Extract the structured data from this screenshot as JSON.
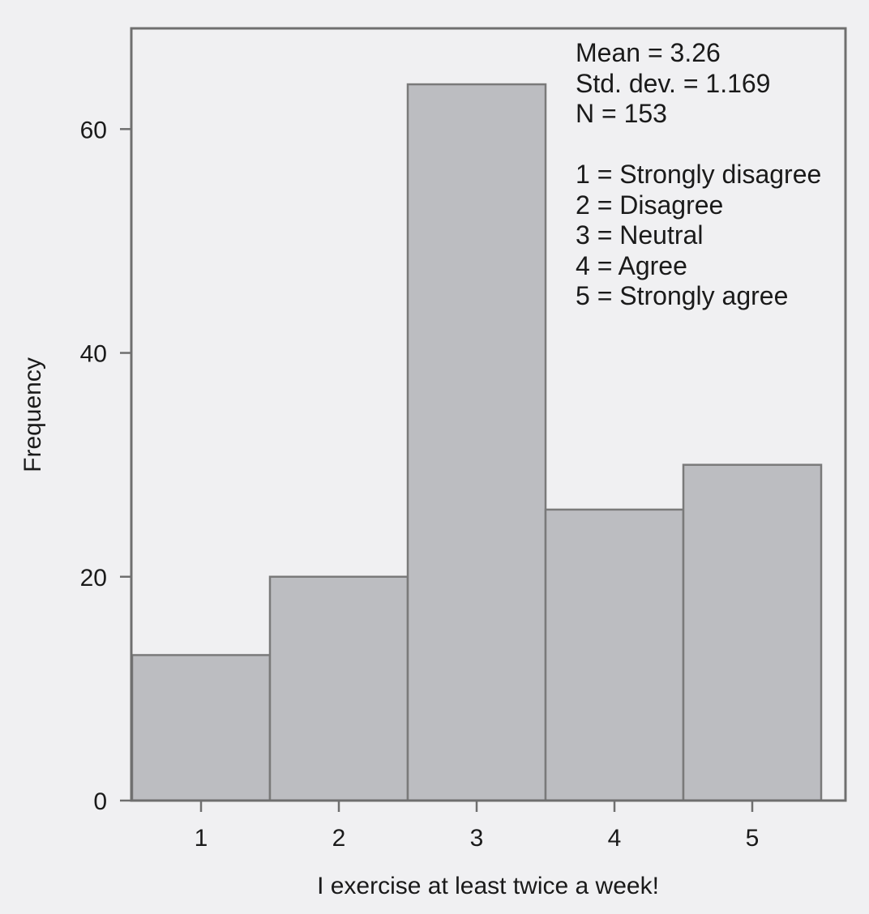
{
  "colors": {
    "background": "#f0f0f2",
    "bar_fill": "#bcbdc1",
    "bar_stroke": "#7a7a7a",
    "frame": "#6f6f6f",
    "text": "#1a1a1a"
  },
  "chart_data": {
    "type": "bar",
    "title": "",
    "xlabel": "I exercise at least twice a week!",
    "ylabel": "Frequency",
    "categories": [
      "1",
      "2",
      "3",
      "4",
      "5"
    ],
    "values": [
      13,
      20,
      64,
      26,
      30
    ],
    "ylim": [
      0,
      69
    ],
    "yticks": [
      "0",
      "20",
      "40",
      "60"
    ],
    "grid": false,
    "stats": [
      "Mean = 3.26",
      "Std. dev. = 1.169",
      "N = 153"
    ],
    "scale_legend": [
      "1 = Strongly disagree",
      "2 = Disagree",
      "3 = Neutral",
      "4 = Agree",
      "5 = Strongly agree"
    ]
  }
}
